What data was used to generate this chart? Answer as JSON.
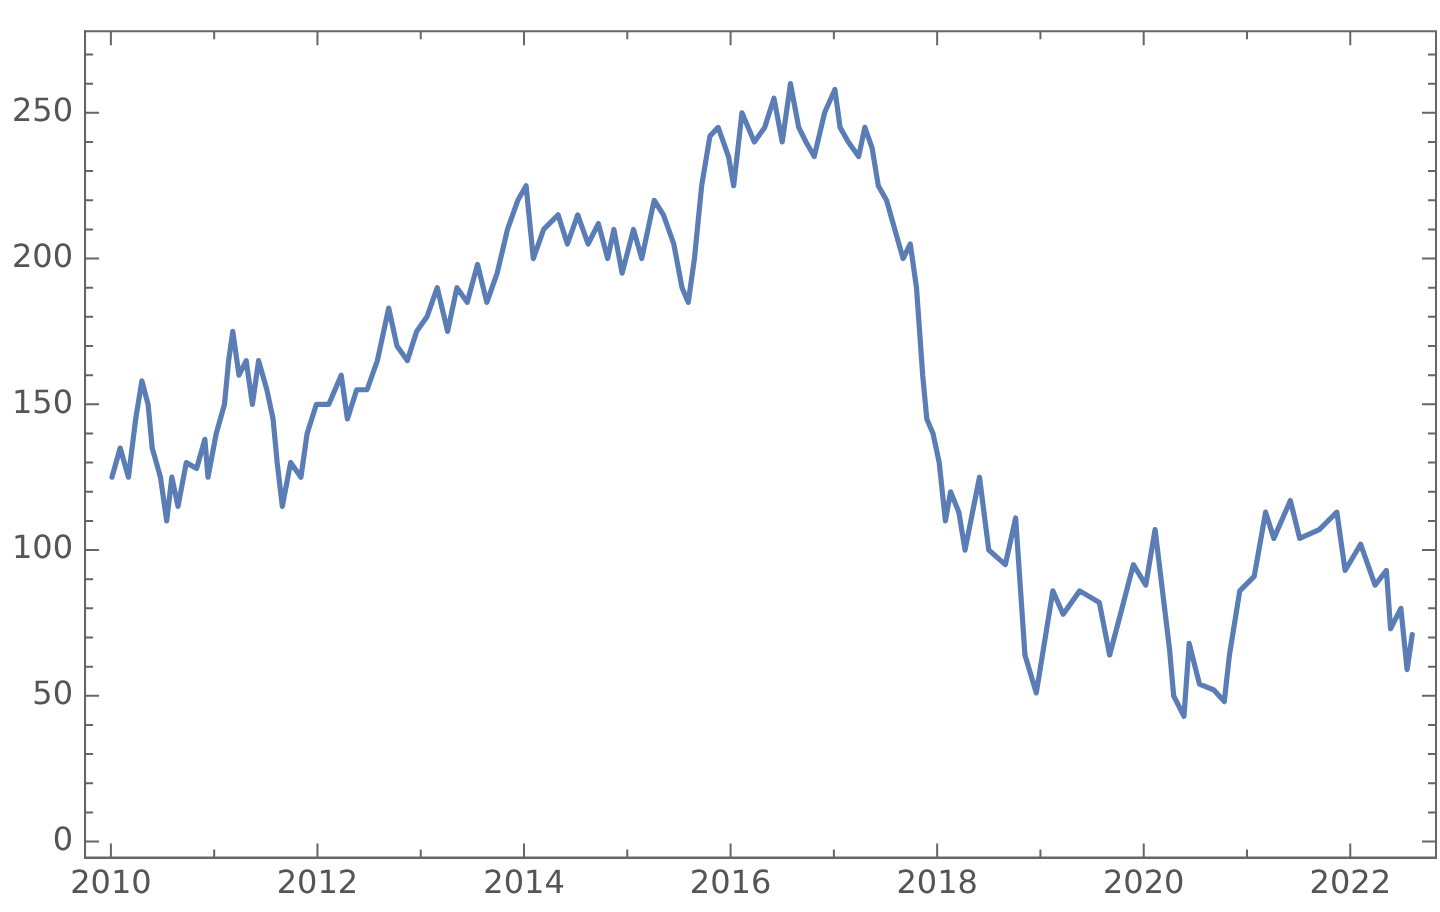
{
  "chart_data": {
    "type": "line",
    "x": [
      2010.01,
      2010.09,
      2010.17,
      2010.24,
      2010.3,
      2010.36,
      2010.4,
      2010.48,
      2010.54,
      2010.59,
      2010.65,
      2010.73,
      2010.83,
      2010.91,
      2010.94,
      2011.02,
      2011.1,
      2011.14,
      2011.18,
      2011.24,
      2011.31,
      2011.37,
      2011.43,
      2011.51,
      2011.57,
      2011.61,
      2011.66,
      2011.74,
      2011.84,
      2011.9,
      2011.99,
      2012.11,
      2012.23,
      2012.29,
      2012.38,
      2012.48,
      2012.58,
      2012.69,
      2012.77,
      2012.87,
      2012.96,
      2013.06,
      2013.16,
      2013.26,
      2013.35,
      2013.45,
      2013.55,
      2013.64,
      2013.74,
      2013.84,
      2013.94,
      2014.02,
      2014.09,
      2014.19,
      2014.33,
      2014.42,
      2014.52,
      2014.62,
      2014.72,
      2014.81,
      2014.87,
      2014.95,
      2015.06,
      2015.14,
      2015.26,
      2015.35,
      2015.45,
      2015.53,
      2015.59,
      2015.65,
      2015.72,
      2015.8,
      2015.88,
      2015.98,
      2016.03,
      2016.11,
      2016.23,
      2016.33,
      2016.42,
      2016.5,
      2016.58,
      2016.66,
      2016.73,
      2016.81,
      2016.91,
      2017.01,
      2017.06,
      2017.14,
      2017.24,
      2017.3,
      2017.37,
      2017.43,
      2017.51,
      2017.59,
      2017.67,
      2017.74,
      2017.8,
      2017.86,
      2017.9,
      2017.96,
      2018.02,
      2018.08,
      2018.13,
      2018.21,
      2018.27,
      2018.41,
      2018.5,
      2018.66,
      2018.76,
      2018.85,
      2018.96,
      2019.12,
      2019.22,
      2019.38,
      2019.57,
      2019.67,
      2019.76,
      2019.9,
      2020.02,
      2020.11,
      2020.25,
      2020.29,
      2020.39,
      2020.44,
      2020.54,
      2020.68,
      2020.78,
      2020.83,
      2020.93,
      2021.07,
      2021.18,
      2021.26,
      2021.42,
      2021.51,
      2021.7,
      2021.87,
      2021.95,
      2022.1,
      2022.24,
      2022.35,
      2022.39,
      2022.49,
      2022.55,
      2022.6
    ],
    "series": [
      {
        "color": "#5b7db5",
        "values": [
          125,
          135,
          125,
          145,
          158,
          150,
          135,
          125,
          110,
          125,
          115,
          130,
          128,
          138,
          125,
          140,
          150,
          165,
          175,
          160,
          165,
          150,
          165,
          155,
          145,
          130,
          115,
          130,
          125,
          140,
          150,
          150,
          160,
          145,
          155,
          155,
          165,
          183,
          170,
          165,
          175,
          180,
          190,
          175,
          190,
          185,
          198,
          185,
          195,
          210,
          220,
          225,
          200,
          210,
          215,
          205,
          215,
          205,
          212,
          200,
          210,
          195,
          210,
          200,
          220,
          215,
          205,
          190,
          185,
          200,
          225,
          242,
          245,
          235,
          225,
          250,
          240,
          245,
          255,
          240,
          260,
          245,
          240,
          235,
          250,
          258,
          245,
          240,
          235,
          245,
          238,
          225,
          220,
          210,
          200,
          205,
          190,
          160,
          145,
          140,
          130,
          110,
          120,
          113,
          100,
          125,
          100,
          95,
          111,
          64,
          51,
          86,
          78,
          86,
          82,
          64,
          76,
          95,
          88,
          107,
          66,
          50,
          43,
          68,
          54,
          52,
          48,
          64,
          86,
          91,
          113,
          104,
          117,
          104,
          107,
          113,
          93,
          102,
          88,
          93,
          73,
          80,
          59,
          71
        ]
      }
    ],
    "xlim": [
      2009.75,
      2022.83
    ],
    "xticks": [
      2010,
      {
        "value": 2011,
        "label": null
      },
      2012,
      {
        "value": 2013,
        "label": null
      },
      2014,
      {
        "value": 2015,
        "label": null
      },
      2016,
      {
        "value": 2017,
        "label": null
      },
      2018,
      {
        "value": 2019,
        "label": null
      },
      2020,
      {
        "value": 2021,
        "label": null
      },
      2022
    ],
    "ylim": [
      -5.5,
      278
    ],
    "yticks": [
      0,
      {
        "value": 10,
        "label": null
      },
      {
        "value": 20,
        "label": null
      },
      {
        "value": 30,
        "label": null
      },
      {
        "value": 40,
        "label": null
      },
      50,
      {
        "value": 60,
        "label": null
      },
      {
        "value": 70,
        "label": null
      },
      {
        "value": 80,
        "label": null
      },
      {
        "value": 90,
        "label": null
      },
      100,
      {
        "value": 110,
        "label": null
      },
      {
        "value": 120,
        "label": null
      },
      {
        "value": 130,
        "label": null
      },
      {
        "value": 140,
        "label": null
      },
      150,
      {
        "value": 160,
        "label": null
      },
      {
        "value": 170,
        "label": null
      },
      {
        "value": 180,
        "label": null
      },
      {
        "value": 190,
        "label": null
      },
      200,
      {
        "value": 210,
        "label": null
      },
      {
        "value": 220,
        "label": null
      },
      {
        "value": 230,
        "label": null
      },
      {
        "value": 240,
        "label": null
      },
      250,
      {
        "value": 260,
        "label": null
      },
      {
        "value": 270,
        "label": null
      }
    ],
    "grid": false,
    "legend": false,
    "marker": "none",
    "line_style": "solid"
  }
}
